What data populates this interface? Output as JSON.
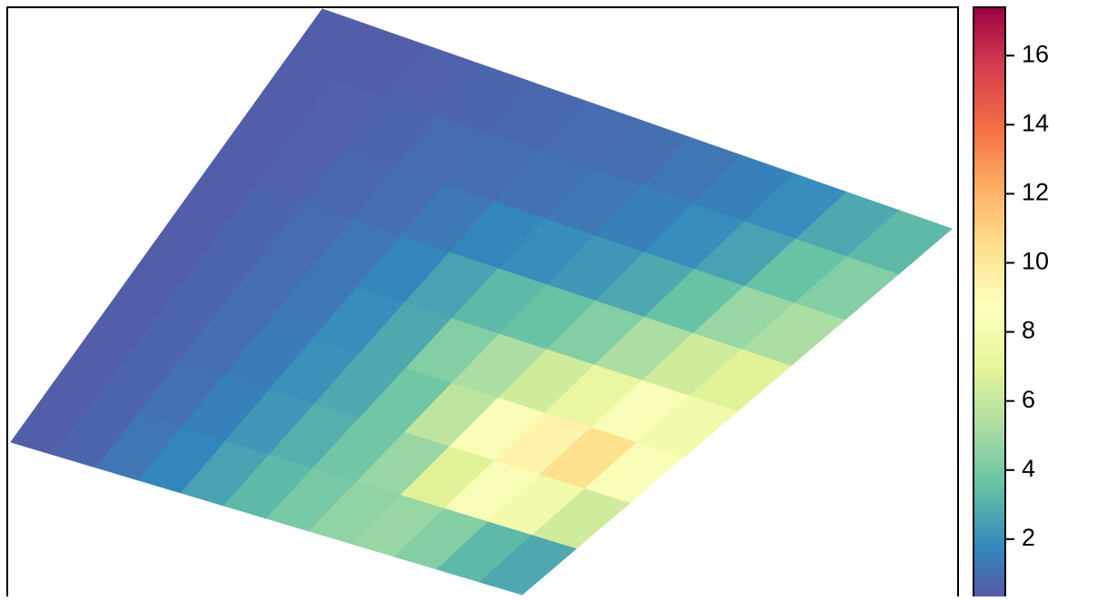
{
  "chart_data": {
    "type": "raster",
    "zlim": [
      0.34,
      17.4
    ],
    "zticks": [
      2,
      4,
      6,
      8,
      10,
      12,
      14,
      16
    ],
    "colors": [
      "#5E4FA2",
      "#3288BD",
      "#66C2A5",
      "#ABDDA4",
      "#E6F598",
      "#FFFFBF",
      "#FEE08B",
      "#FDAE61",
      "#F46D43",
      "#D53E4F",
      "#9E0142"
    ],
    "z": [
      [
        0.8,
        0.8,
        0.9,
        1.0,
        1.1,
        1.2,
        1.3,
        1.5,
        1.8,
        2.2,
        3.0,
        3.5
      ],
      [
        0.8,
        0.9,
        1.0,
        1.2,
        1.3,
        1.4,
        1.6,
        1.8,
        2.2,
        2.8,
        3.8,
        4.5
      ],
      [
        0.8,
        0.9,
        1.1,
        1.3,
        1.6,
        2.0,
        2.2,
        2.5,
        3.0,
        3.8,
        5.0,
        5.5
      ],
      [
        0.8,
        1.0,
        1.2,
        1.5,
        2.0,
        2.8,
        3.5,
        3.8,
        4.5,
        5.5,
        6.5,
        7.0
      ],
      [
        0.8,
        1.0,
        1.3,
        1.6,
        2.2,
        3.0,
        4.5,
        5.5,
        6.5,
        7.5,
        8.5,
        8.0
      ],
      [
        0.8,
        1.0,
        1.3,
        1.7,
        2.3,
        3.0,
        4.0,
        6.0,
        8.5,
        9.5,
        10.5,
        8.5
      ],
      [
        0.8,
        1.0,
        1.4,
        1.8,
        2.5,
        3.2,
        4.0,
        5.0,
        7.0,
        8.5,
        8.0,
        6.5
      ],
      [
        0.8,
        1.0,
        1.5,
        2.0,
        2.8,
        3.5,
        4.2,
        4.8,
        5.0,
        4.5,
        3.5,
        3.0
      ]
    ]
  }
}
